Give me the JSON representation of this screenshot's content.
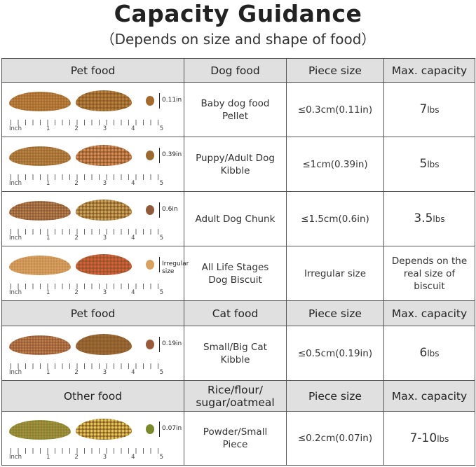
{
  "title": "Capacity Guidance",
  "subtitle": "（Depends on size and shape of food）",
  "ruler": {
    "unit": "Inch",
    "ticks": [
      "1",
      "2",
      "3",
      "4",
      "5"
    ]
  },
  "sections": [
    {
      "header": [
        "Pet food",
        "Dog food",
        "Piece size",
        "Max. capacity"
      ],
      "rows": [
        {
          "measure": "0.11in",
          "food": "Baby dog food Pellet",
          "size": "≤0.3cm(0.11in)",
          "cap_num": "7",
          "cap_unit": "lbs",
          "colors": [
            "#a56a2a",
            "#b9803a"
          ]
        },
        {
          "measure": "0.39in",
          "food": "Puppy/Adult Dog Kibble",
          "size": "≤1cm(0.39in)",
          "cap_num": "5",
          "cap_unit": "lbs",
          "colors": [
            "#9b6a2e",
            "#d98a55"
          ]
        },
        {
          "measure": "0.6in",
          "food": "Adult Dog Chunk",
          "size": "≤1.5cm(0.6in)",
          "cap_num": "3.5",
          "cap_unit": "lbs",
          "colors": [
            "#8e5a3a",
            "#c9a455"
          ]
        },
        {
          "measure": "Irregular size",
          "food": "All Life Stages Dog Biscuit",
          "size": "Irregular size",
          "cap_text": "Depends on the real size of biscuit",
          "colors": [
            "#d9a060",
            "#e05a3a"
          ]
        }
      ]
    },
    {
      "header": [
        "Pet food",
        "Cat food",
        "Piece size",
        "Max. capacity"
      ],
      "rows": [
        {
          "measure": "0.19in",
          "food": "Small/Big Cat Kibble",
          "size": "≤0.5cm(0.19in)",
          "cap_num": "6",
          "cap_unit": "lbs",
          "colors": [
            "#9a5a3a",
            "#9b6a35"
          ]
        }
      ]
    },
    {
      "header": [
        "Other food",
        "Rice/flour/ sugar/oatmeal",
        "Piece size",
        "Max. capacity"
      ],
      "rows": [
        {
          "measure": "0.07in",
          "food": "Powder/Small Piece",
          "size": "≤0.2cm(0.07in)",
          "cap_num": "7-10",
          "cap_unit": "lbs",
          "colors": [
            "#7a8a2a",
            "#e0c850"
          ]
        }
      ]
    }
  ]
}
